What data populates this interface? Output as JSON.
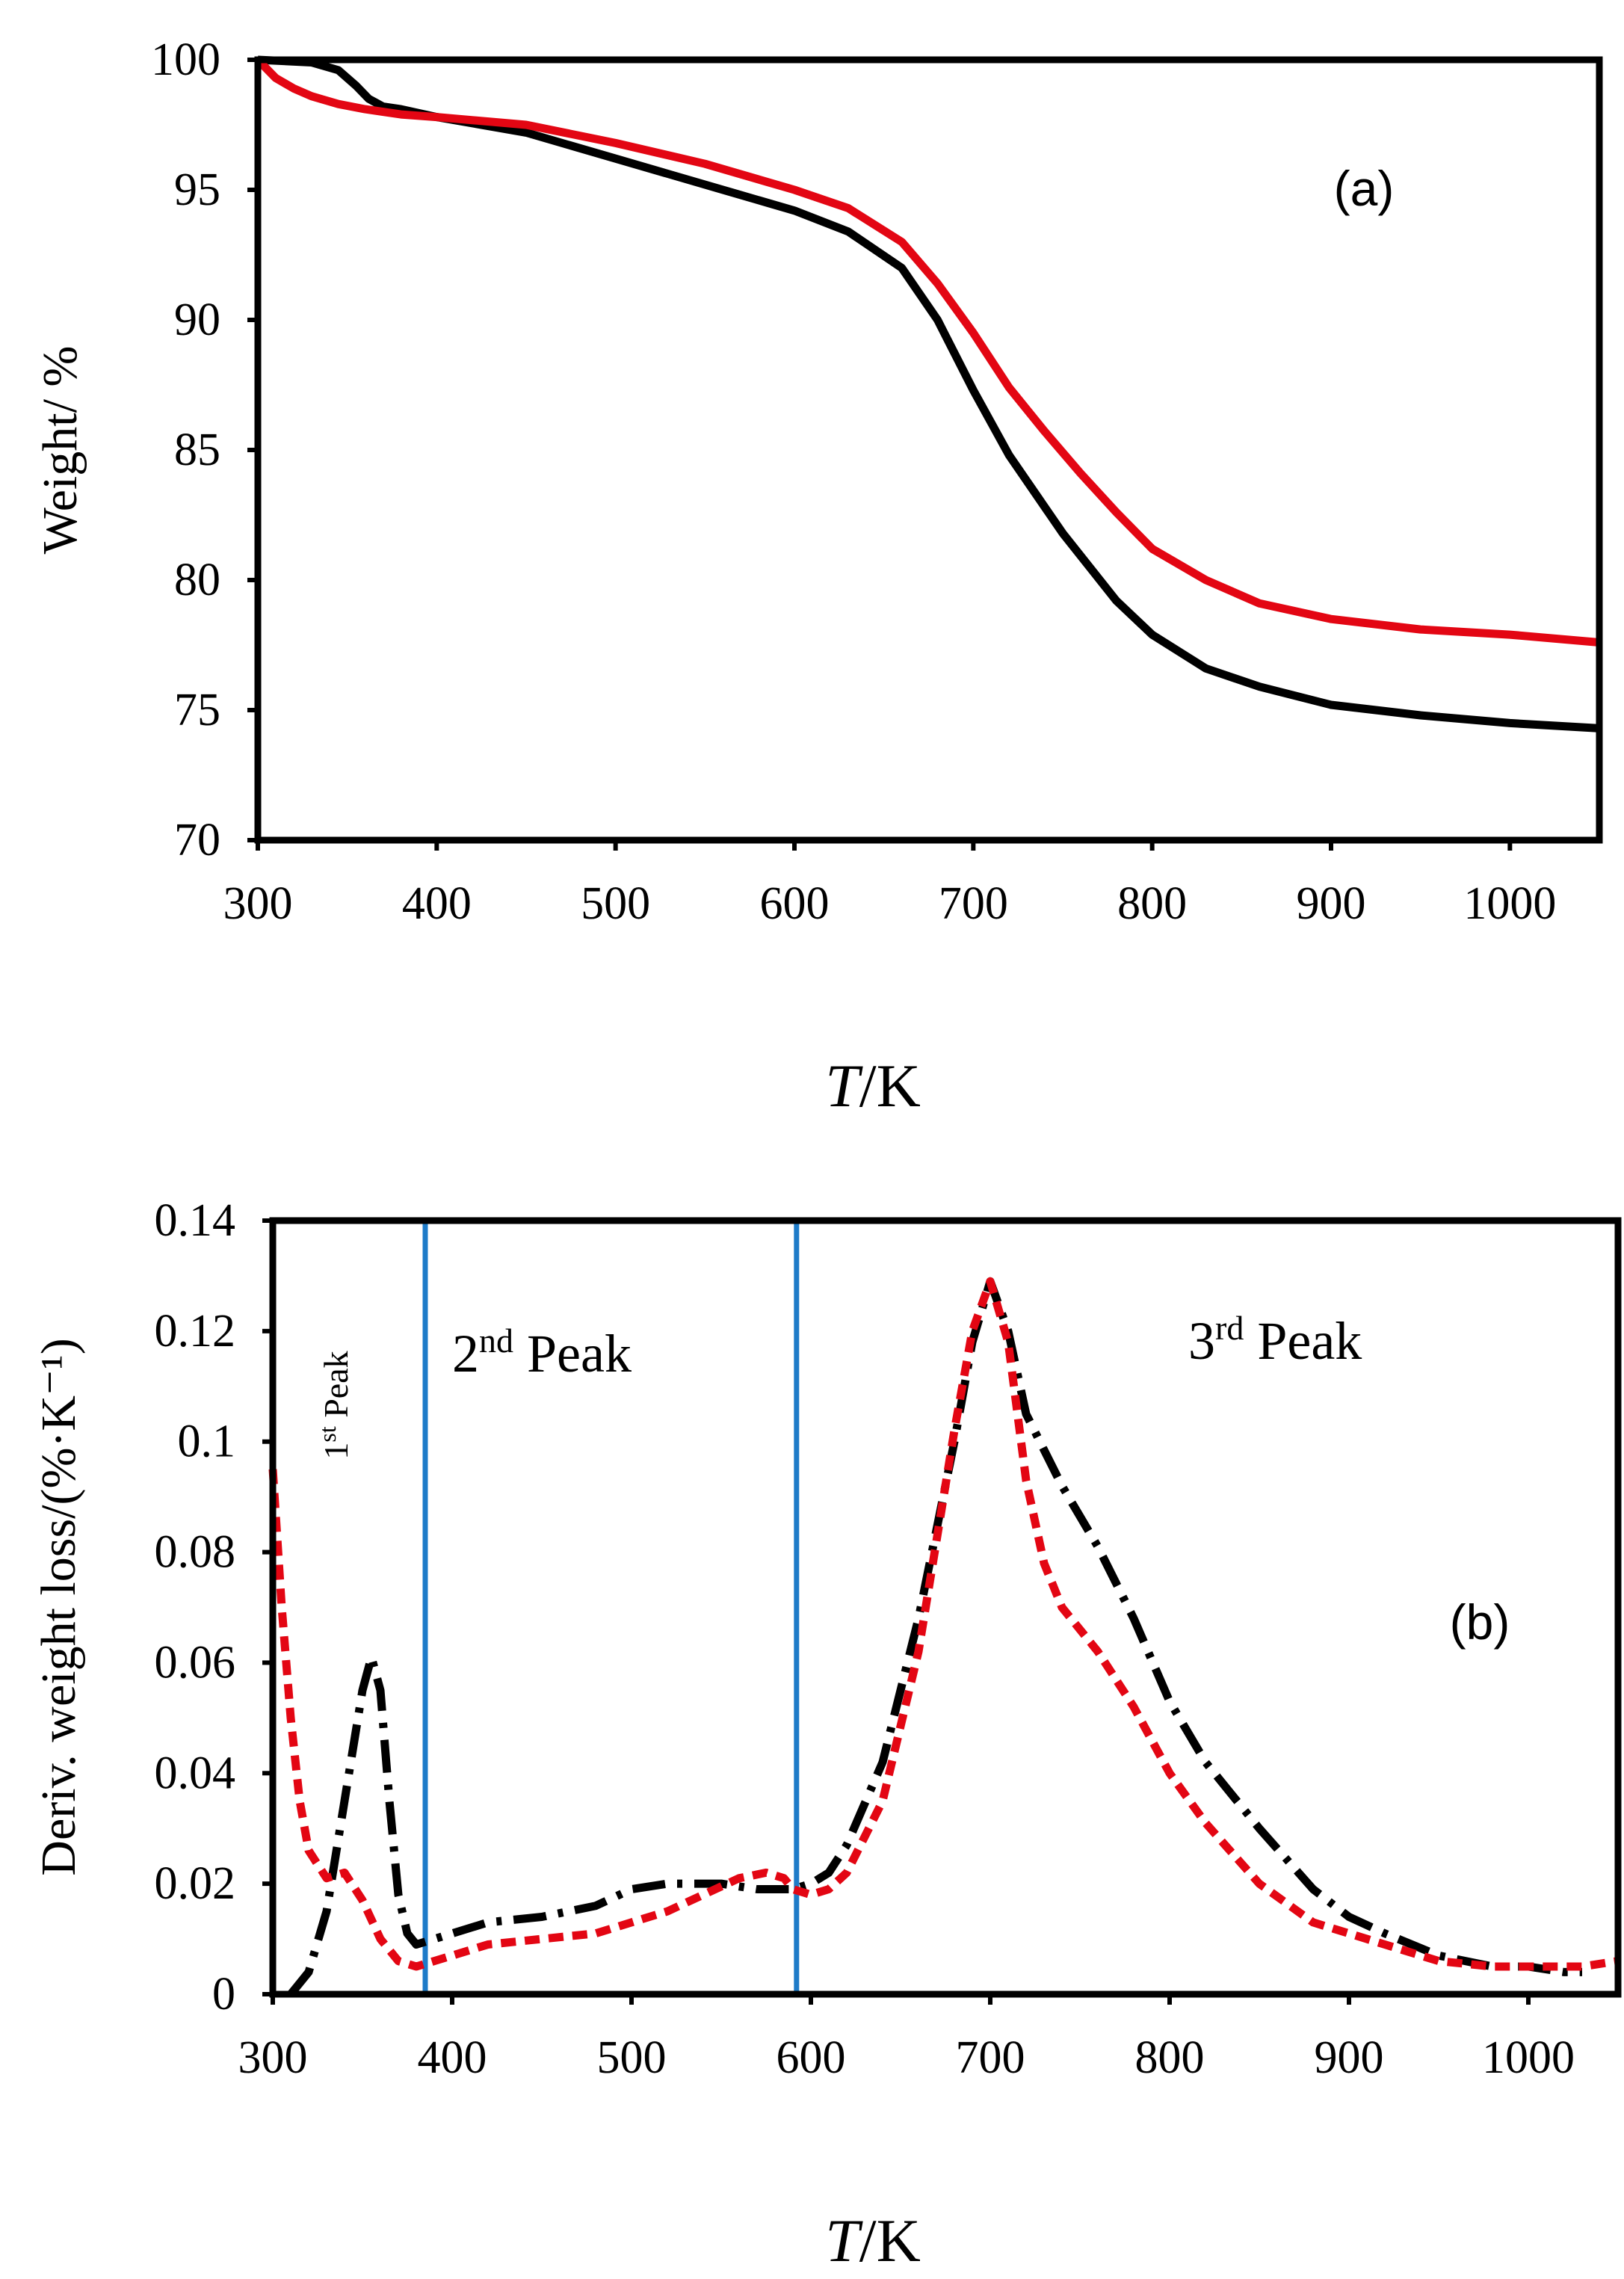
{
  "colors": {
    "sample_a": "#000000",
    "sample_b": "#e30613",
    "boundary": "#1e7bc8"
  },
  "chart_data": [
    {
      "type": "line",
      "panel_label": "(a)",
      "xlabel_italic": "T",
      "xlabel_rest": "/K",
      "ylabel": "Weight/ %",
      "xlim": [
        300,
        1050
      ],
      "ylim": [
        70,
        100
      ],
      "xticks": [
        "300",
        "400",
        "500",
        "600",
        "700",
        "800",
        "900",
        "1000"
      ],
      "yticks": [
        "70",
        "75",
        "80",
        "85",
        "90",
        "95",
        "100"
      ],
      "series": [
        {
          "name": "black",
          "style": "solid",
          "x": [
            300,
            330,
            345,
            355,
            362,
            370,
            380,
            400,
            450,
            500,
            550,
            600,
            630,
            660,
            680,
            700,
            720,
            750,
            780,
            800,
            830,
            860,
            900,
            950,
            1000,
            1050
          ],
          "y": [
            100,
            99.9,
            99.6,
            99.0,
            98.5,
            98.2,
            98.1,
            97.8,
            97.2,
            96.2,
            95.2,
            94.2,
            93.4,
            92.0,
            90.0,
            87.3,
            84.8,
            81.8,
            79.2,
            77.9,
            76.6,
            75.9,
            75.2,
            74.8,
            74.5,
            74.3
          ]
        },
        {
          "name": "red",
          "style": "solid",
          "x": [
            300,
            310,
            320,
            330,
            345,
            360,
            380,
            400,
            450,
            500,
            550,
            600,
            630,
            660,
            680,
            700,
            720,
            740,
            760,
            780,
            800,
            830,
            860,
            900,
            950,
            1000,
            1050
          ],
          "y": [
            100,
            99.3,
            98.9,
            98.6,
            98.3,
            98.1,
            97.9,
            97.8,
            97.5,
            96.8,
            96.0,
            95.0,
            94.3,
            93.0,
            91.4,
            89.5,
            87.4,
            85.7,
            84.1,
            82.6,
            81.2,
            80.0,
            79.1,
            78.5,
            78.1,
            77.9,
            77.6
          ]
        }
      ]
    },
    {
      "type": "line",
      "panel_label": "(b)",
      "xlabel_italic": "T",
      "xlabel_rest": "/K",
      "ylabel": "Deriv. weight loss/(%·K⁻¹)",
      "xlim": [
        300,
        1050
      ],
      "ylim": [
        0,
        0.14
      ],
      "xticks": [
        "300",
        "400",
        "500",
        "600",
        "700",
        "800",
        "900",
        "1000"
      ],
      "yticks": [
        "0",
        "0.02",
        "0.04",
        "0.06",
        "0.08",
        "0.1",
        "0.12",
        "0.14"
      ],
      "vlines": [
        385,
        592
      ],
      "annotations": {
        "peak1_num": "1",
        "peak1_sup": "st",
        "peak1_text": " Peak",
        "peak2_num": "2",
        "peak2_sup": "nd",
        "peak2_text": " Peak",
        "peak3_num": "3",
        "peak3_sup": "rd",
        "peak3_text": " Peak"
      },
      "series": [
        {
          "name": "black",
          "style": "dash-dot",
          "x": [
            310,
            315,
            320,
            330,
            340,
            350,
            355,
            360,
            365,
            370,
            375,
            380,
            390,
            400,
            420,
            450,
            480,
            500,
            520,
            550,
            570,
            590,
            600,
            610,
            620,
            640,
            660,
            680,
            690,
            700,
            710,
            720,
            740,
            760,
            780,
            800,
            820,
            850,
            880,
            900,
            920,
            950,
            980,
            1000,
            1020,
            1030
          ],
          "y": [
            0.0,
            0.002,
            0.004,
            0.015,
            0.035,
            0.055,
            0.061,
            0.055,
            0.035,
            0.018,
            0.011,
            0.009,
            0.01,
            0.011,
            0.013,
            0.014,
            0.016,
            0.019,
            0.02,
            0.02,
            0.019,
            0.019,
            0.02,
            0.022,
            0.027,
            0.042,
            0.068,
            0.1,
            0.118,
            0.129,
            0.12,
            0.105,
            0.092,
            0.081,
            0.068,
            0.053,
            0.042,
            0.03,
            0.019,
            0.014,
            0.011,
            0.007,
            0.005,
            0.005,
            0.004,
            0.004
          ]
        },
        {
          "name": "red",
          "style": "dashed",
          "x": [
            300,
            305,
            310,
            315,
            320,
            330,
            340,
            350,
            360,
            370,
            380,
            390,
            400,
            420,
            450,
            480,
            500,
            520,
            540,
            560,
            575,
            585,
            590,
            600,
            610,
            620,
            640,
            660,
            680,
            690,
            700,
            710,
            720,
            730,
            740,
            760,
            780,
            800,
            820,
            850,
            880,
            900,
            920,
            950,
            980,
            1000,
            1030,
            1050
          ],
          "y": [
            0.095,
            0.07,
            0.05,
            0.035,
            0.026,
            0.021,
            0.022,
            0.017,
            0.01,
            0.006,
            0.005,
            0.006,
            0.007,
            0.009,
            0.01,
            0.011,
            0.013,
            0.015,
            0.018,
            0.021,
            0.022,
            0.021,
            0.019,
            0.018,
            0.019,
            0.022,
            0.035,
            0.062,
            0.102,
            0.12,
            0.129,
            0.118,
            0.093,
            0.078,
            0.07,
            0.062,
            0.052,
            0.04,
            0.031,
            0.02,
            0.013,
            0.011,
            0.009,
            0.006,
            0.005,
            0.005,
            0.005,
            0.006
          ]
        }
      ]
    }
  ]
}
